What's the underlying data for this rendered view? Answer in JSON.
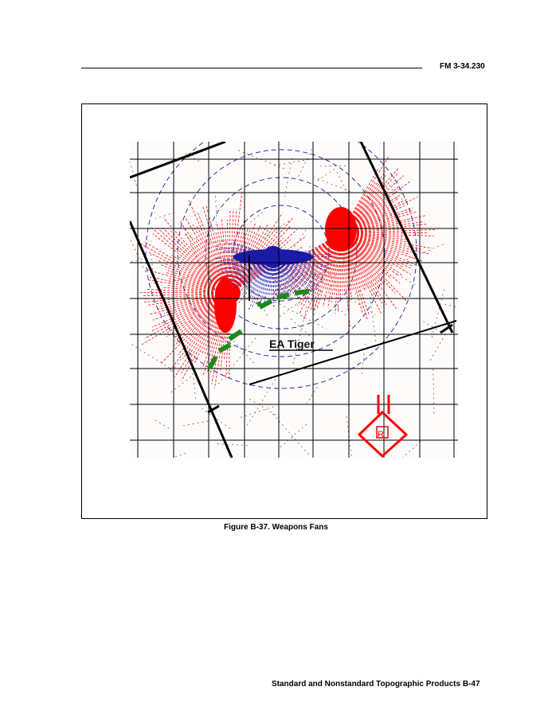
{
  "header": {
    "doc_id": "FM 3-34.230"
  },
  "figure": {
    "map_label": "EA Tiger",
    "caption": "Figure B-37.  Weapons Fans",
    "colors": {
      "friendly_fan": "#ff0000",
      "enemy_fan": "#1a1aa8",
      "obstacle": "#1a8a1a",
      "symbol": "#ff0000",
      "grid": "#000000"
    }
  },
  "footer": {
    "page_label": "Standard and Nonstandard Topographic Products  B-47"
  }
}
